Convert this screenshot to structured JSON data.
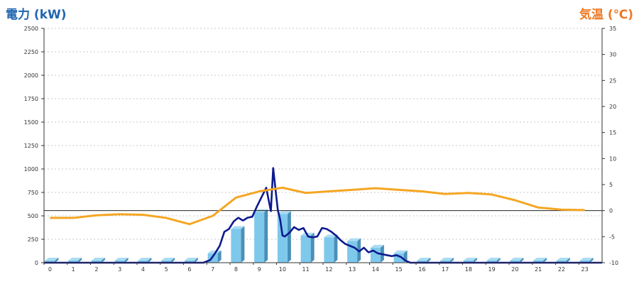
{
  "chart_data": {
    "type": "bar",
    "left_axis": {
      "title": "電力 (kW)",
      "ylim": [
        0,
        2500
      ],
      "ticks": [
        "0",
        "250",
        "500",
        "750",
        "1000",
        "1250",
        "1500",
        "1750",
        "2000",
        "2250",
        "2500"
      ]
    },
    "right_axis": {
      "title": "気温 (℃)",
      "ylim": [
        -10,
        35
      ],
      "ticks": [
        "-10",
        "-5",
        "0",
        "5",
        "10",
        "15",
        "20",
        "25",
        "30",
        "35"
      ]
    },
    "categories": [
      "0",
      "1",
      "2",
      "3",
      "4",
      "5",
      "6",
      "7",
      "8",
      "9",
      "10",
      "11",
      "12",
      "13",
      "14",
      "15",
      "16",
      "17",
      "18",
      "19",
      "20",
      "21",
      "22",
      "23"
    ],
    "grid": true,
    "colors": {
      "bars": "#7ec8ec",
      "bars_dark": "#4a8fb8",
      "power_line": "#0d1a8f",
      "temp_line": "#f5a623",
      "baseline": "#222222",
      "left_title": "#1f66b0",
      "right_title": "#ee7722"
    },
    "series": [
      {
        "type": "bar",
        "axis": "left",
        "values": [
          0,
          0,
          0,
          0,
          0,
          0,
          0,
          100,
          360,
          540,
          520,
          290,
          270,
          230,
          160,
          100,
          0,
          0,
          0,
          0,
          0,
          0,
          0,
          0
        ]
      },
      {
        "type": "line",
        "axis": "left",
        "x": [
          6.6,
          6.9,
          7.1,
          7.3,
          7.5,
          7.7,
          7.9,
          8.1,
          8.3,
          8.5,
          8.7,
          8.9,
          9.1,
          9.3,
          9.5,
          9.6,
          9.7,
          9.8,
          9.9,
          10.0,
          10.1,
          10.3,
          10.5,
          10.7,
          10.9,
          11.1,
          11.3,
          11.5,
          11.7,
          11.9,
          12.1,
          12.3,
          12.5,
          12.7,
          12.9,
          13.1,
          13.3,
          13.5,
          13.7,
          13.9,
          14.1,
          14.3,
          14.5,
          14.7,
          14.9,
          15.1,
          15.3,
          15.5,
          15.7
        ],
        "values": [
          0,
          30,
          100,
          180,
          330,
          360,
          440,
          480,
          450,
          480,
          490,
          600,
          700,
          800,
          550,
          1010,
          780,
          560,
          460,
          290,
          280,
          320,
          380,
          350,
          370,
          280,
          270,
          280,
          370,
          360,
          330,
          290,
          240,
          200,
          180,
          160,
          120,
          160,
          110,
          130,
          100,
          90,
          80,
          70,
          80,
          60,
          20,
          0,
          0
        ]
      },
      {
        "type": "line",
        "axis": "right",
        "x": [
          0,
          1,
          2,
          3,
          4,
          5,
          6,
          7,
          8,
          9,
          10,
          11,
          12,
          13,
          14,
          15,
          16,
          17,
          18,
          19,
          20,
          21,
          22,
          23
        ],
        "values": [
          -1.4,
          -1.4,
          -0.9,
          -0.7,
          -0.8,
          -1.4,
          -2.6,
          -1.0,
          2.5,
          3.7,
          4.4,
          3.4,
          3.7,
          4.0,
          4.3,
          4.0,
          3.7,
          3.2,
          3.4,
          3.1,
          2.0,
          0.6,
          0.2,
          0.1
        ]
      }
    ]
  }
}
